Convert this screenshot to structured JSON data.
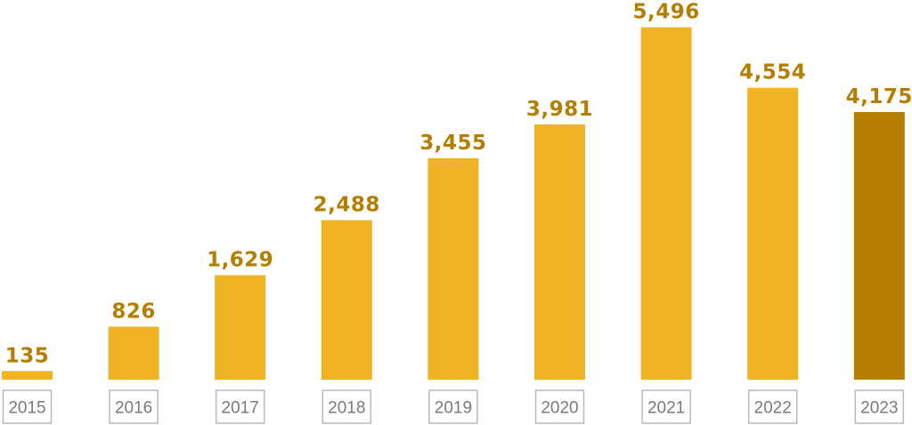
{
  "chart_data": {
    "type": "bar",
    "categories": [
      "2015",
      "2016",
      "2017",
      "2018",
      "2019",
      "2020",
      "2021",
      "2022",
      "2023"
    ],
    "values": [
      135,
      826,
      1629,
      2488,
      3455,
      3981,
      5496,
      4554,
      4175
    ],
    "value_labels": [
      "135",
      "826",
      "1,629",
      "2,488",
      "3,455",
      "3,981",
      "5,496",
      "4,554",
      "4,175"
    ],
    "highlight_index": 8,
    "grid": false,
    "legend": "none"
  },
  "colors": {
    "bar": "#F0B323",
    "bar_highlight": "#B47E00",
    "value_label": "#B47E00",
    "year_text": "#7a7a7a",
    "year_box_border": "#b9b9b9"
  }
}
